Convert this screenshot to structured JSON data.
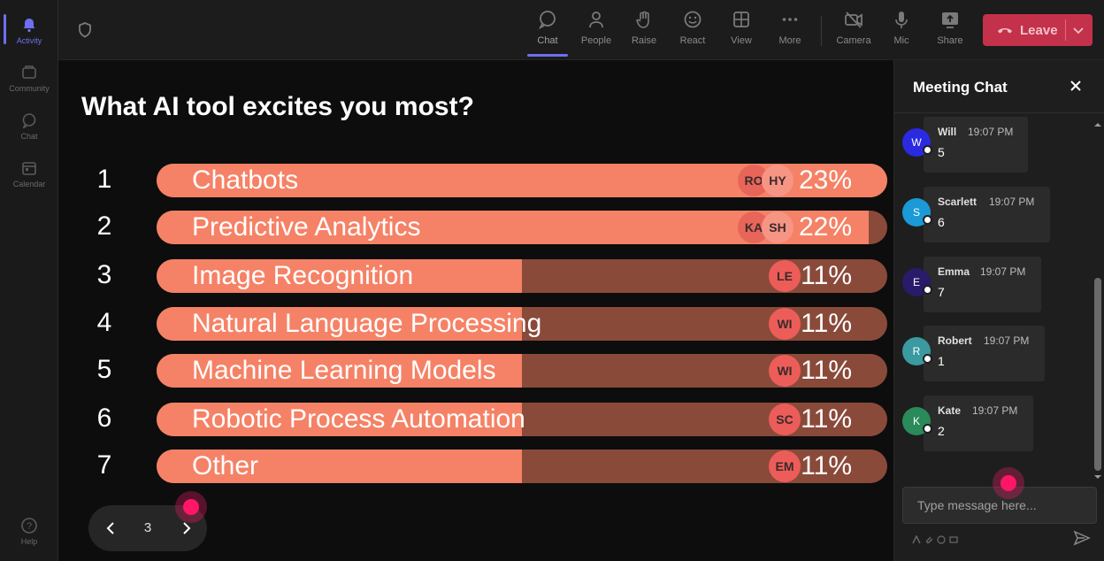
{
  "rail": {
    "items": [
      {
        "label": "Activity",
        "icon": "bell-icon"
      },
      {
        "label": "Community",
        "icon": "community-icon"
      },
      {
        "label": "Chat",
        "icon": "chat-icon"
      },
      {
        "label": "Calendar",
        "icon": "calendar-icon"
      }
    ],
    "help": "Help"
  },
  "topbar": {
    "buttons": [
      {
        "label": "Chat",
        "icon": "chat-icon"
      },
      {
        "label": "People",
        "icon": "people-icon"
      },
      {
        "label": "Raise",
        "icon": "raise-hand-icon"
      },
      {
        "label": "React",
        "icon": "react-icon"
      },
      {
        "label": "View",
        "icon": "view-icon"
      },
      {
        "label": "More",
        "icon": "more-icon"
      },
      {
        "label": "Camera",
        "icon": "camera-off-icon"
      },
      {
        "label": "Mic",
        "icon": "mic-icon"
      },
      {
        "label": "Share",
        "icon": "share-icon"
      }
    ],
    "leave_label": "Leave"
  },
  "poll": {
    "title": "What AI tool excites you most?",
    "options": [
      {
        "num": "1",
        "label": "Chatbots",
        "pct": "23%",
        "fraction": 1.0,
        "avatars": [
          "RO",
          "HY"
        ]
      },
      {
        "num": "2",
        "label": "Predictive Analytics",
        "pct": "22%",
        "fraction": 0.975,
        "avatars": [
          "KA",
          "SH"
        ]
      },
      {
        "num": "3",
        "label": "Image Recognition",
        "pct": "11%",
        "fraction": 0.5,
        "avatars": [
          "LE"
        ]
      },
      {
        "num": "4",
        "label": "Natural Language Processing",
        "pct": "11%",
        "fraction": 0.5,
        "avatars": [
          "WI"
        ]
      },
      {
        "num": "5",
        "label": "Machine Learning Models",
        "pct": "11%",
        "fraction": 0.5,
        "avatars": [
          "WI"
        ]
      },
      {
        "num": "6",
        "label": "Robotic Process Automation",
        "pct": "11%",
        "fraction": 0.5,
        "avatars": [
          "SC"
        ]
      },
      {
        "num": "7",
        "label": "Other",
        "pct": "11%",
        "fraction": 0.5,
        "avatars": [
          "EM"
        ]
      }
    ],
    "page": "3"
  },
  "chat": {
    "title": "Meeting Chat",
    "messages": [
      {
        "initial": "W",
        "name": "Will",
        "time": "19:07 PM",
        "text": "5",
        "color": "#2a2ae0"
      },
      {
        "initial": "S",
        "name": "Scarlett",
        "time": "19:07 PM",
        "text": "6",
        "color": "#1a9ad6"
      },
      {
        "initial": "E",
        "name": "Emma",
        "time": "19:07 PM",
        "text": "7",
        "color": "#2a1a6a"
      },
      {
        "initial": "R",
        "name": "Robert",
        "time": "19:07 PM",
        "text": "1",
        "color": "#3a9aa0"
      },
      {
        "initial": "K",
        "name": "Kate",
        "time": "19:07 PM",
        "text": "2",
        "color": "#2a8a5a"
      }
    ],
    "input_placeholder": "Type message here..."
  }
}
